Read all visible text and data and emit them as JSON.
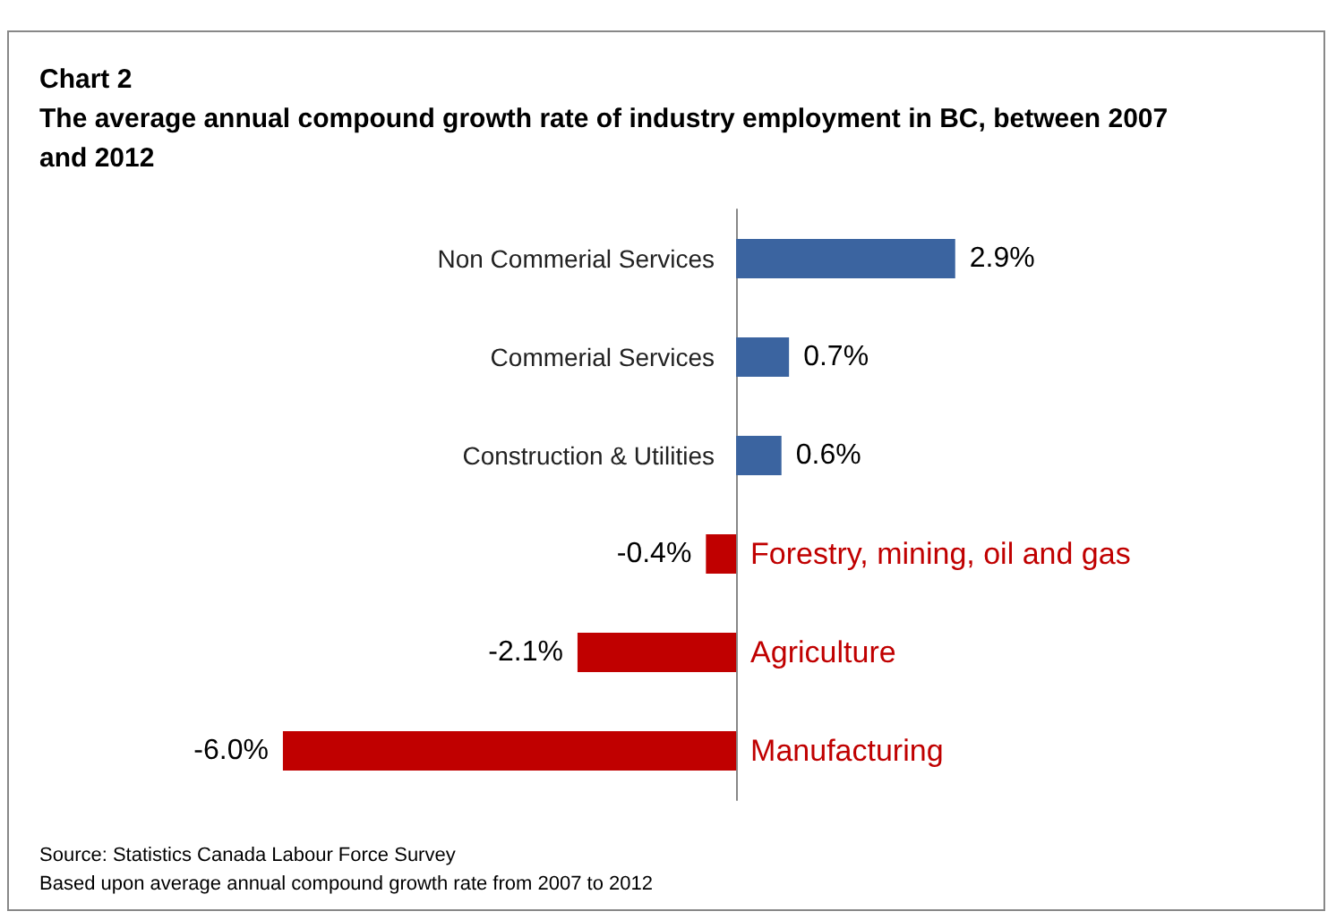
{
  "chart_data": {
    "type": "bar",
    "orientation": "horizontal",
    "title": "Chart 2",
    "subtitle": "The average annual compound growth rate of industry employment in BC, between 2007 and 2012",
    "categories": [
      "Non Commerial Services",
      "Commerial Services",
      "Construction & Utilities",
      "Forestry, mining, oil and gas",
      "Agriculture",
      "Manufacturing"
    ],
    "values": [
      2.9,
      0.7,
      0.6,
      -0.4,
      -2.1,
      -6.0
    ],
    "colors": [
      "#3b64a0",
      "#3b64a0",
      "#3b64a0",
      "#c00000",
      "#c00000",
      "#c00000"
    ],
    "value_labels": [
      "2.9%",
      "0.7%",
      "0.6%",
      "-0.4%",
      "-2.1%",
      "-6.0%"
    ],
    "tick_labels": false,
    "grid": false,
    "annotations": [
      "Source: Statistics Canada Labour Force Survey",
      "Based upon average annual compound growth rate from 2007 to 2012"
    ]
  }
}
